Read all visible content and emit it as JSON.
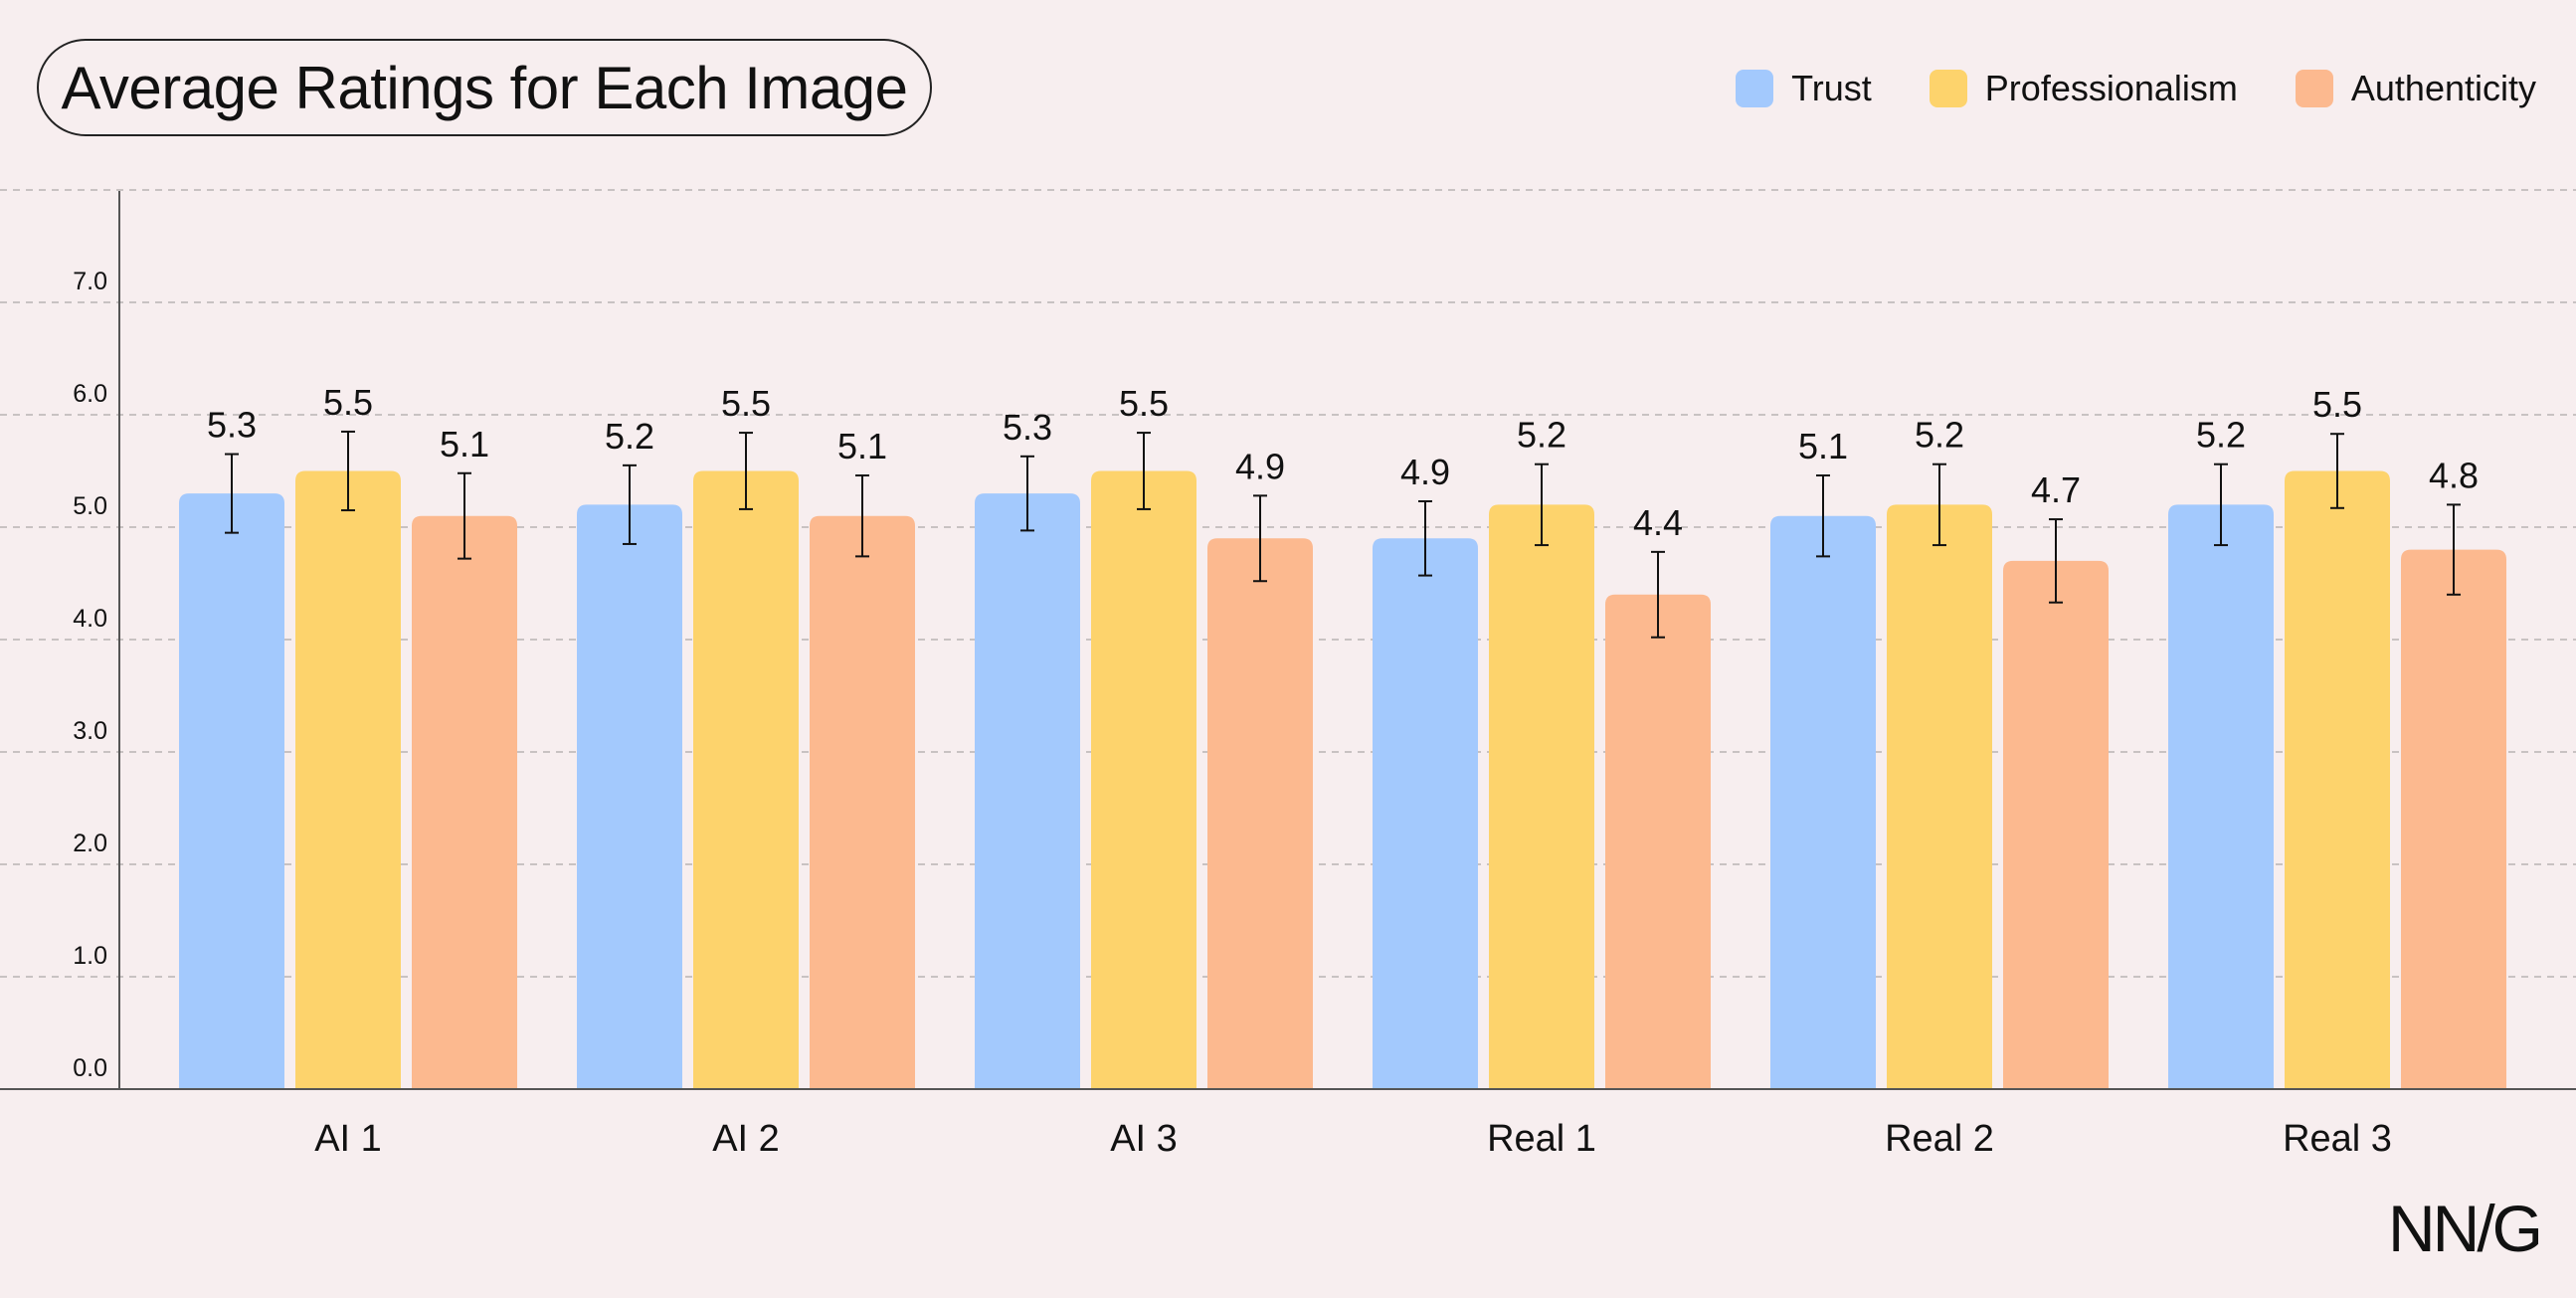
{
  "title": "Average Ratings for Each Image",
  "brand": "NN/G",
  "colors": {
    "background": "#f7eeef",
    "Trust": "#a3c9fd",
    "Professionalism": "#fdd36c",
    "Authenticity": "#fcb98f",
    "grid": "#b9b3b4",
    "axis": "#555555",
    "text": "#111111"
  },
  "chart_data": {
    "type": "bar",
    "title": "Average Ratings for Each Image",
    "xlabel": "",
    "ylabel": "",
    "categories": [
      "AI 1",
      "AI 2",
      "AI 3",
      "Real 1",
      "Real 2",
      "Real 3"
    ],
    "series": [
      {
        "name": "Trust",
        "values": [
          5.3,
          5.2,
          5.3,
          4.9,
          5.1,
          5.2
        ],
        "error": [
          0.35,
          0.35,
          0.33,
          0.33,
          0.36,
          0.36
        ]
      },
      {
        "name": "Professionalism",
        "values": [
          5.5,
          5.5,
          5.5,
          5.2,
          5.2,
          5.5
        ],
        "error": [
          0.35,
          0.34,
          0.34,
          0.36,
          0.36,
          0.33
        ]
      },
      {
        "name": "Authenticity",
        "values": [
          5.1,
          5.1,
          4.9,
          4.4,
          4.7,
          4.8
        ],
        "error": [
          0.38,
          0.36,
          0.38,
          0.38,
          0.37,
          0.4
        ]
      }
    ],
    "yticks": [
      "0.0",
      "1.0",
      "2.0",
      "3.0",
      "4.0",
      "5.0",
      "6.0",
      "7.0"
    ],
    "ylim": [
      0,
      8
    ],
    "grid": true,
    "legend_position": "top-right",
    "error_bars": true
  }
}
